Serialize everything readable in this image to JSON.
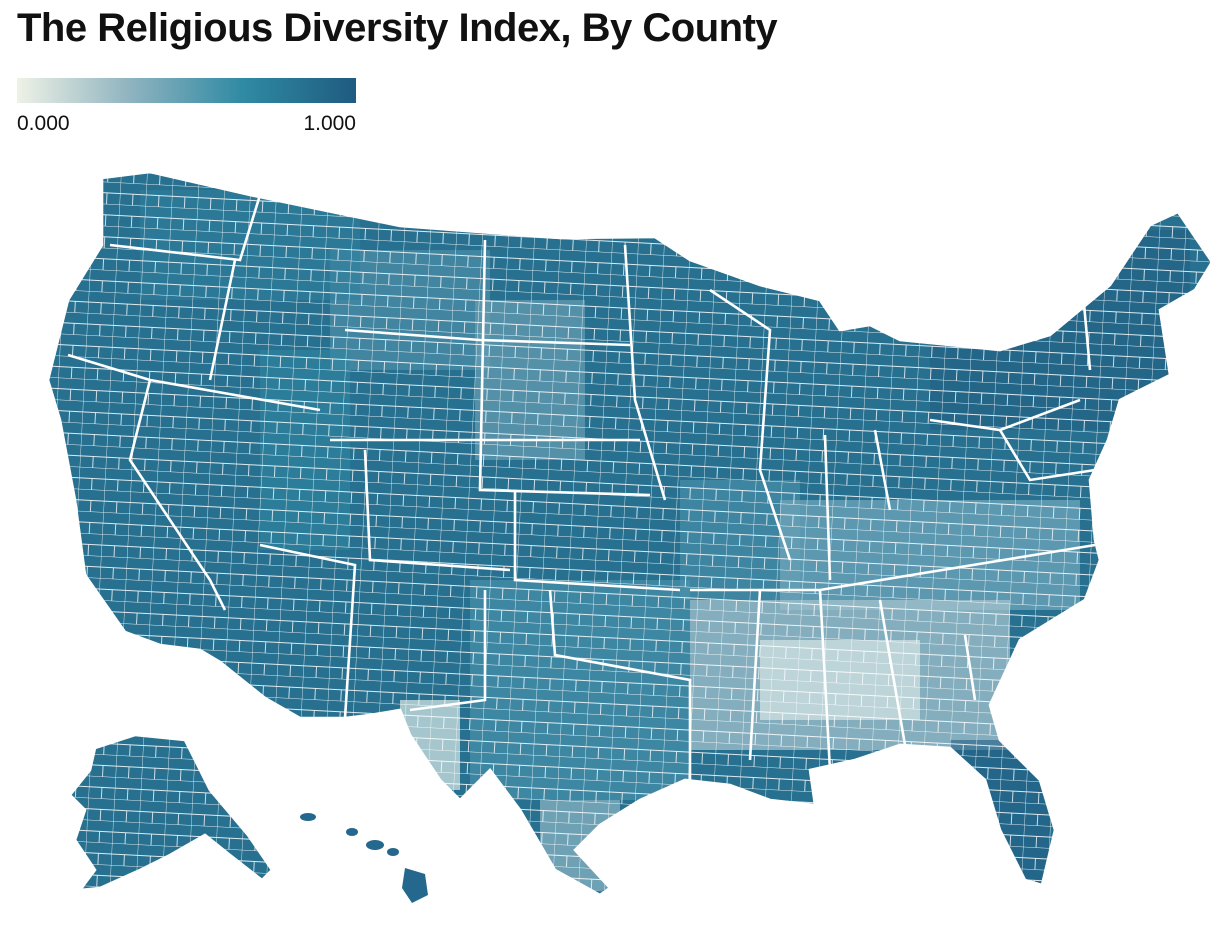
{
  "title": "The Religious Diversity Index, By County",
  "legend": {
    "min_label": "0.000",
    "max_label": "1.000",
    "min": 0,
    "max": 1,
    "colors": [
      "#eef2e6",
      "#8fb3c0",
      "#2f8aa3",
      "#1f5b80"
    ]
  },
  "map": {
    "region": "United States",
    "unit": "county",
    "boundary_color": "#ffffff",
    "state_boundary_color": "#ffffff"
  }
}
